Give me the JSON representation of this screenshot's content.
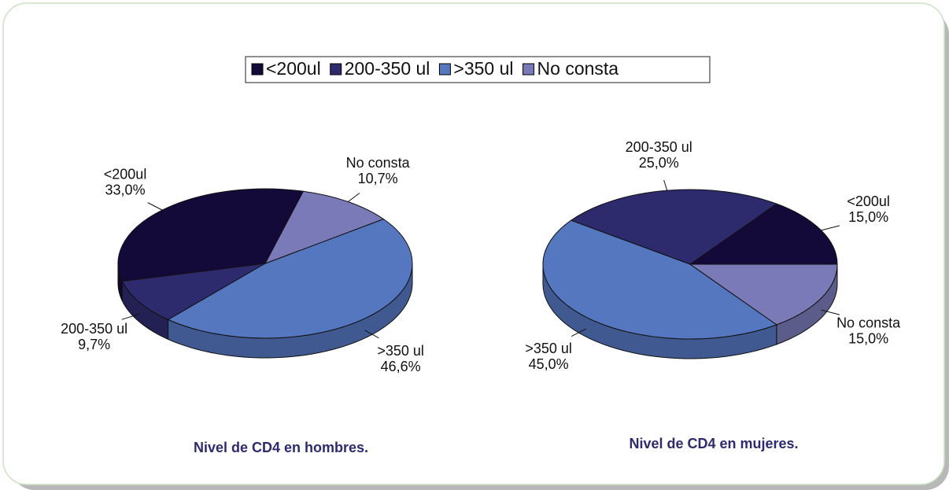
{
  "chart_data": [
    {
      "type": "pie",
      "title": "Nivel de CD4 en hombres.",
      "categories": [
        "<200ul",
        "200-350 ul",
        ">350 ul",
        "No consta"
      ],
      "values": [
        33.0,
        9.7,
        46.6,
        10.7
      ],
      "value_labels": [
        "33,0%",
        "9,7%",
        "46,6%",
        "10,7%"
      ],
      "colors": [
        "#140a3a",
        "#2e2a6e",
        "#5577c0",
        "#7a7ab8"
      ]
    },
    {
      "type": "pie",
      "title": "Nivel de CD4 en mujeres.",
      "categories": [
        "<200ul",
        "200-350 ul",
        ">350 ul",
        "No consta"
      ],
      "values": [
        15.0,
        25.0,
        45.0,
        15.0
      ],
      "value_labels": [
        "15,0%",
        "25,0%",
        "45,0%",
        "15,0%"
      ],
      "colors": [
        "#140a3a",
        "#2e2a6e",
        "#5577c0",
        "#7a7ab8"
      ]
    }
  ]
}
